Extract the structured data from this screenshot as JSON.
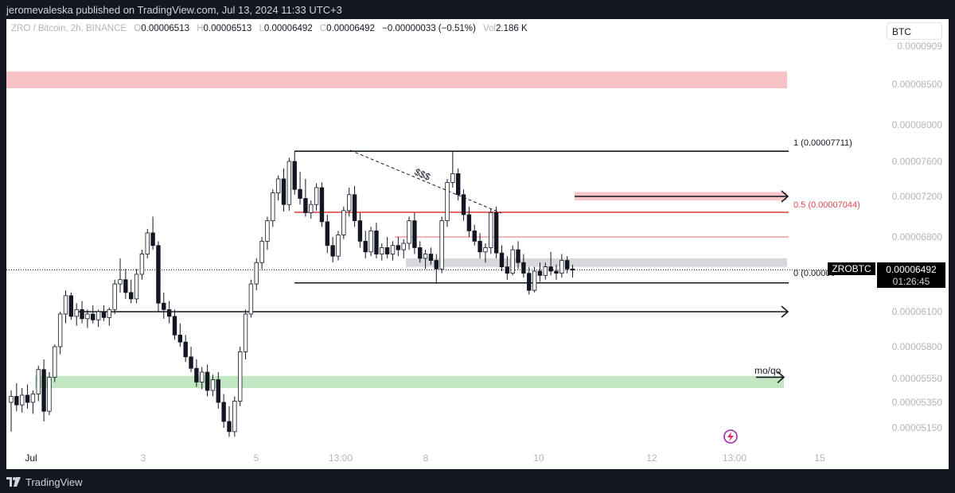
{
  "publish_line": "jeromevaleska published on TradingView.com, Jul 13, 2024 11:33 UTC+3",
  "footer": {
    "brand": "TradingView"
  },
  "legend": {
    "symbol": "ZRO / Bitcoin, 2h, BINANCE",
    "o_label": "O",
    "o_value": "0.00006513",
    "h_label": "H",
    "h_value": "0.00006513",
    "l_label": "L",
    "l_value": "0.00006492",
    "c_label": "C",
    "c_value": "0.00006492",
    "change": "−0.00000033 (−0.51%)",
    "vol_label": "Vol",
    "vol_value": "2.186 K"
  },
  "currency_button": "BTC",
  "price_tag": {
    "symbol": "ZROBTC",
    "price": "0.00006492",
    "countdown": "01:26:45"
  },
  "fib_labels": {
    "level_1": "1 (0.00007711)",
    "level_05": "0.5 (0.00007044)",
    "level_0": "0 (0.00006"
  },
  "annotations": {
    "dollars": "$$$",
    "moqo": "mo/qo"
  },
  "colors": {
    "up": "#ffffff",
    "down": "#131722",
    "wick": "#131722",
    "supply_zone": "#f7b9bd",
    "demand_zone": "#b9e2b9",
    "gray_zone": "#d4d4d8",
    "fib_mid": "#e2484f",
    "axis_text": "#b2b5be",
    "tag_bg": "#000000"
  },
  "chart_data": {
    "type": "candlestick",
    "symbol": "ZRO / Bitcoin",
    "interval": "2h",
    "exchange": "BINANCE",
    "y_ticks": [
      9.09e-05,
      8.5e-05,
      8e-05,
      7.6e-05,
      7.2e-05,
      6.8e-05,
      6.1e-05,
      5.8e-05,
      5.55e-05,
      5.35e-05,
      5.15e-05
    ],
    "y_tick_labels": [
      "0.0000909",
      "0.00008500",
      "0.00008000",
      "0.00007600",
      "0.00007200",
      "0.00006800",
      "0.00006100",
      "0.00005800",
      "0.00005550",
      "0.00005350",
      "0.00005150"
    ],
    "x_ticks": [
      "Jul",
      "3",
      "5",
      "13:00",
      "8",
      "10",
      "12",
      "13:00",
      "15"
    ],
    "fib_levels": [
      {
        "label": "1",
        "price": 7.711e-05
      },
      {
        "label": "0.5",
        "price": 7.044e-05
      },
      {
        "label": "0",
        "price": 6.37e-05
      }
    ],
    "zones": [
      {
        "kind": "supply",
        "from": 8.45e-05,
        "to": 8.7e-05
      },
      {
        "kind": "supply",
        "from": 7.16e-05,
        "to": 7.25e-05
      },
      {
        "kind": "range",
        "from": 6.52e-05,
        "to": 6.6e-05
      },
      {
        "kind": "demand",
        "from": 5.47e-05,
        "to": 5.57e-05
      }
    ],
    "horizontal_rays": [
      6.1e-05,
      7.2e-05,
      5.56e-05
    ],
    "last_price": 6.492e-05,
    "candles": [
      [
        5.35e-05,
        5.45e-05,
        5.12e-05,
        5.4e-05
      ],
      [
        5.4e-05,
        5.51e-05,
        5.28e-05,
        5.33e-05
      ],
      [
        5.33e-05,
        5.47e-05,
        5.27e-05,
        5.41e-05
      ],
      [
        5.41e-05,
        5.5e-05,
        5.3e-05,
        5.35e-05
      ],
      [
        5.35e-05,
        5.45e-05,
        5.26e-05,
        5.42e-05
      ],
      [
        5.42e-05,
        5.65e-05,
        5.36e-05,
        5.62e-05
      ],
      [
        5.62e-05,
        5.7e-05,
        5.2e-05,
        5.28e-05
      ],
      [
        5.28e-05,
        5.6e-05,
        5.25e-05,
        5.56e-05
      ],
      [
        5.56e-05,
        5.82e-05,
        5.52e-05,
        5.8e-05
      ],
      [
        5.8e-05,
        6.1e-05,
        5.74e-05,
        6.08e-05
      ],
      [
        6.08e-05,
        6.3e-05,
        6e-05,
        6.25e-05
      ],
      [
        6.25e-05,
        6.28e-05,
        6.03e-05,
        6.06e-05
      ],
      [
        6.06e-05,
        6.18e-05,
        5.98e-05,
        6.12e-05
      ],
      [
        6.12e-05,
        6.2e-05,
        6e-05,
        6.04e-05
      ],
      [
        6.04e-05,
        6.12e-05,
        5.96e-05,
        6.08e-05
      ],
      [
        6.08e-05,
        6.16e-05,
        6e-05,
        6.03e-05
      ],
      [
        6.03e-05,
        6.12e-05,
        5.97e-05,
        6.1e-05
      ],
      [
        6.1e-05,
        6.16e-05,
        6.02e-05,
        6.05e-05
      ],
      [
        6.05e-05,
        6.14e-05,
        5.98e-05,
        6.12e-05
      ],
      [
        6.12e-05,
        6.4e-05,
        6.08e-05,
        6.36e-05
      ],
      [
        6.36e-05,
        6.6e-05,
        6.28e-05,
        6.4e-05
      ],
      [
        6.4e-05,
        6.5e-05,
        6.22e-05,
        6.28e-05
      ],
      [
        6.28e-05,
        6.4e-05,
        6.18e-05,
        6.22e-05
      ],
      [
        6.22e-05,
        6.5e-05,
        6.18e-05,
        6.45e-05
      ],
      [
        6.45e-05,
        6.68e-05,
        6.4e-05,
        6.64e-05
      ],
      [
        6.64e-05,
        6.88e-05,
        6.6e-05,
        6.84e-05
      ],
      [
        6.84e-05,
        7e-05,
        6.68e-05,
        6.72e-05
      ],
      [
        6.72e-05,
        6.76e-05,
        6.1e-05,
        6.18e-05
      ],
      [
        6.18e-05,
        6.28e-05,
        6.04e-05,
        6.12e-05
      ],
      [
        6.12e-05,
        6.2e-05,
        6e-05,
        6.06e-05
      ],
      [
        6.06e-05,
        6.12e-05,
        5.86e-05,
        5.9e-05
      ],
      [
        5.9e-05,
        6e-05,
        5.8e-05,
        5.84e-05
      ],
      [
        5.84e-05,
        5.9e-05,
        5.68e-05,
        5.72e-05
      ],
      [
        5.72e-05,
        5.8e-05,
        5.6e-05,
        5.63e-05
      ],
      [
        5.63e-05,
        5.7e-05,
        5.48e-05,
        5.52e-05
      ],
      [
        5.52e-05,
        5.64e-05,
        5.46e-05,
        5.6e-05
      ],
      [
        5.6e-05,
        5.66e-05,
        5.4e-05,
        5.45e-05
      ],
      [
        5.45e-05,
        5.58e-05,
        5.4e-05,
        5.54e-05
      ],
      [
        5.54e-05,
        5.6e-05,
        5.3e-05,
        5.35e-05
      ],
      [
        5.35e-05,
        5.42e-05,
        5.15e-05,
        5.2e-05
      ],
      [
        5.2e-05,
        5.32e-05,
        5.08e-05,
        5.12e-05
      ],
      [
        5.12e-05,
        5.4e-05,
        5.08e-05,
        5.36e-05
      ],
      [
        5.36e-05,
        5.8e-05,
        5.32e-05,
        5.76e-05
      ],
      [
        5.76e-05,
        6.12e-05,
        5.7e-05,
        6.08e-05
      ],
      [
        6.08e-05,
        6.4e-05,
        6.05e-05,
        6.36e-05
      ],
      [
        6.36e-05,
        6.6e-05,
        6.3e-05,
        6.56e-05
      ],
      [
        6.56e-05,
        6.8e-05,
        6.5e-05,
        6.76e-05
      ],
      [
        6.76e-05,
        7e-05,
        6.68e-05,
        6.96e-05
      ],
      [
        6.96e-05,
        7.28e-05,
        6.9e-05,
        7.24e-05
      ],
      [
        7.24e-05,
        7.44e-05,
        7.16e-05,
        7.4e-05
      ],
      [
        7.4e-05,
        7.52e-05,
        7.05e-05,
        7.12e-05
      ],
      [
        7.12e-05,
        7.64e-05,
        7.06e-05,
        7.6e-05
      ],
      [
        7.6e-05,
        7.71e-05,
        7.22e-05,
        7.28e-05
      ],
      [
        7.28e-05,
        7.48e-05,
        7.12e-05,
        7.18e-05
      ],
      [
        7.18e-05,
        7.4e-05,
        7e-05,
        7.04e-05
      ],
      [
        7.04e-05,
        7.16e-05,
        6.98e-05,
        7.12e-05
      ],
      [
        7.12e-05,
        7.35e-05,
        7.06e-05,
        7.3e-05
      ],
      [
        7.3e-05,
        7.36e-05,
        6.9e-05,
        6.95e-05
      ],
      [
        6.95e-05,
        7.02e-05,
        6.65e-05,
        6.72e-05
      ],
      [
        6.72e-05,
        6.8e-05,
        6.56e-05,
        6.62e-05
      ],
      [
        6.62e-05,
        6.86e-05,
        6.58e-05,
        6.82e-05
      ],
      [
        6.82e-05,
        7.1e-05,
        6.78e-05,
        7.06e-05
      ],
      [
        7.06e-05,
        7.3e-05,
        7e-05,
        7.22e-05
      ],
      [
        7.22e-05,
        7.32e-05,
        6.9e-05,
        6.96e-05
      ],
      [
        6.96e-05,
        7.04e-05,
        6.7e-05,
        6.76e-05
      ],
      [
        6.76e-05,
        6.86e-05,
        6.6e-05,
        6.66e-05
      ],
      [
        6.66e-05,
        6.9e-05,
        6.62e-05,
        6.86e-05
      ],
      [
        6.86e-05,
        6.94e-05,
        6.6e-05,
        6.64e-05
      ],
      [
        6.64e-05,
        6.74e-05,
        6.58e-05,
        6.7e-05
      ],
      [
        6.7e-05,
        6.8e-05,
        6.6e-05,
        6.64e-05
      ],
      [
        6.64e-05,
        6.76e-05,
        6.58e-05,
        6.72e-05
      ],
      [
        6.72e-05,
        6.8e-05,
        6.62e-05,
        6.68e-05
      ],
      [
        6.68e-05,
        6.78e-05,
        6.6e-05,
        6.74e-05
      ],
      [
        6.74e-05,
        7e-05,
        6.68e-05,
        6.96e-05
      ],
      [
        6.96e-05,
        7.04e-05,
        6.64e-05,
        6.7e-05
      ],
      [
        6.7e-05,
        6.76e-05,
        6.56e-05,
        6.6e-05
      ],
      [
        6.6e-05,
        6.68e-05,
        6.5e-05,
        6.64e-05
      ],
      [
        6.64e-05,
        6.7e-05,
        6.54e-05,
        6.58e-05
      ],
      [
        6.58e-05,
        6.64e-05,
        6.36e-05,
        6.5e-05
      ],
      [
        6.5e-05,
        7e-05,
        6.46e-05,
        6.96e-05
      ],
      [
        6.96e-05,
        7.4e-05,
        6.9e-05,
        7.36e-05
      ],
      [
        7.36e-05,
        7.71e-05,
        7.3e-05,
        7.46e-05
      ],
      [
        7.46e-05,
        7.52e-05,
        7.16e-05,
        7.22e-05
      ],
      [
        7.22e-05,
        7.28e-05,
        6.96e-05,
        7.02e-05
      ],
      [
        7.02e-05,
        7.1e-05,
        6.8e-05,
        6.86e-05
      ],
      [
        6.86e-05,
        6.92e-05,
        6.72e-05,
        6.76e-05
      ],
      [
        6.76e-05,
        6.84e-05,
        6.6e-05,
        6.66e-05
      ],
      [
        6.66e-05,
        6.74e-05,
        6.56e-05,
        6.7e-05
      ],
      [
        6.7e-05,
        7.08e-05,
        6.64e-05,
        7.04e-05
      ],
      [
        7.04e-05,
        7.1e-05,
        6.6e-05,
        6.65e-05
      ],
      [
        6.65e-05,
        6.72e-05,
        6.48e-05,
        6.52e-05
      ],
      [
        6.52e-05,
        6.62e-05,
        6.4e-05,
        6.46e-05
      ],
      [
        6.46e-05,
        6.72e-05,
        6.44e-05,
        6.68e-05
      ],
      [
        6.68e-05,
        6.76e-05,
        6.5e-05,
        6.56e-05
      ],
      [
        6.56e-05,
        6.64e-05,
        6.42e-05,
        6.46e-05
      ],
      [
        6.46e-05,
        6.52e-05,
        6.26e-05,
        6.3e-05
      ],
      [
        6.3e-05,
        6.52e-05,
        6.28e-05,
        6.48e-05
      ],
      [
        6.48e-05,
        6.56e-05,
        6.38e-05,
        6.44e-05
      ],
      [
        6.44e-05,
        6.56e-05,
        6.4e-05,
        6.52e-05
      ],
      [
        6.52e-05,
        6.66e-05,
        6.44e-05,
        6.48e-05
      ],
      [
        6.48e-05,
        6.54e-05,
        6.4e-05,
        6.46e-05
      ],
      [
        6.46e-05,
        6.64e-05,
        6.42e-05,
        6.58e-05
      ],
      [
        6.58e-05,
        6.62e-05,
        6.46e-05,
        6.5e-05
      ],
      [
        6.5e-05,
        6.54e-05,
        6.42e-05,
        6.49e-05
      ]
    ]
  }
}
